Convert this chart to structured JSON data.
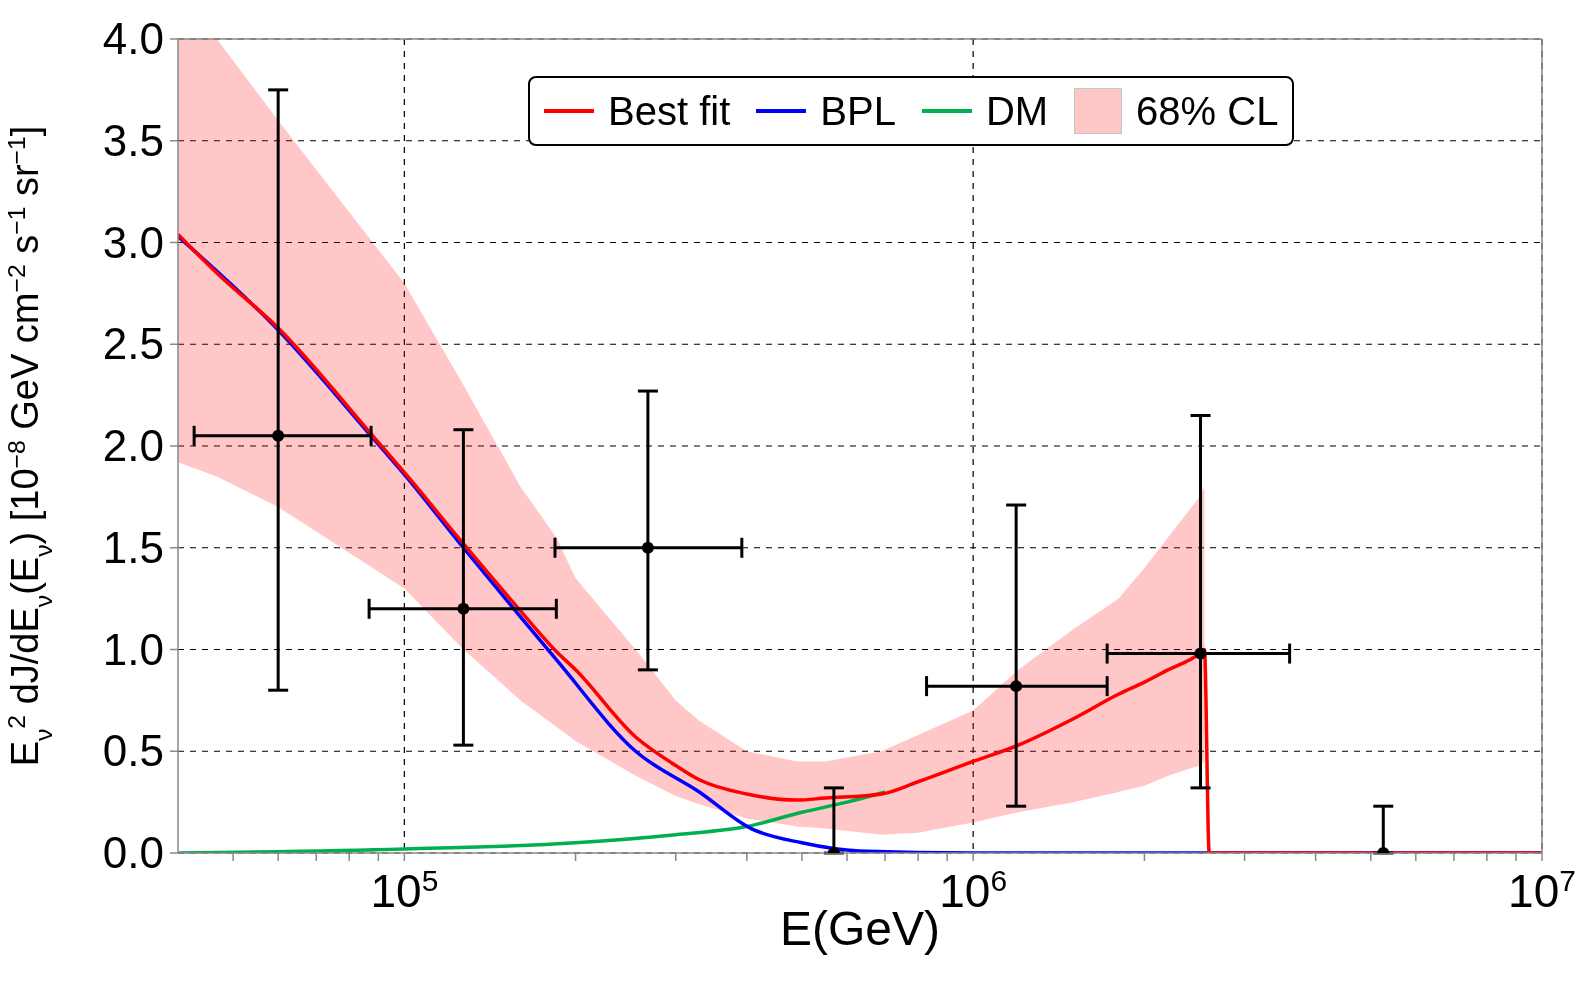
{
  "chart_data": {
    "type": "line",
    "xlabel": "E(GeV)",
    "ylabel": "E$_{ν}$$^{2}$ dJ/dE$_{ν}$(E$_{ν}$) [10$^{−8}$ GeV cm$^{−2}$ s$^{−1}$ sr$^{−1}$]",
    "annotations": [
      "68% CL"
    ],
    "log": "x",
    "grid": true,
    "legend": "top",
    "line_style": "solid",
    "xlim": [
      40000,
      10000000
    ],
    "xticks": [
      {
        "value": 50000,
        "label": null
      },
      {
        "value": 60000,
        "label": null
      },
      {
        "value": 70000,
        "label": null
      },
      {
        "value": 80000,
        "label": null
      },
      {
        "value": 90000,
        "label": null
      },
      {
        "value": 100000,
        "label": "10$^{5}$"
      },
      {
        "value": 200000,
        "label": null
      },
      {
        "value": 300000,
        "label": null
      },
      {
        "value": 400000,
        "label": null
      },
      {
        "value": 500000,
        "label": null
      },
      {
        "value": 600000,
        "label": null
      },
      {
        "value": 700000,
        "label": null
      },
      {
        "value": 800000,
        "label": null
      },
      {
        "value": 900000,
        "label": null
      },
      {
        "value": 1000000,
        "label": "10$^{6}$"
      },
      {
        "value": 2000000,
        "label": null
      },
      {
        "value": 3000000,
        "label": null
      },
      {
        "value": 4000000,
        "label": null
      },
      {
        "value": 5000000,
        "label": null
      },
      {
        "value": 6000000,
        "label": null
      },
      {
        "value": 7000000,
        "label": null
      },
      {
        "value": 8000000,
        "label": null
      },
      {
        "value": 9000000,
        "label": null
      },
      {
        "value": 10000000,
        "label": "10$^{7}$"
      }
    ],
    "ylim": [
      0,
      4
    ],
    "yticks": [
      {
        "value": 0,
        "label": "0.0"
      },
      {
        "value": 0.5,
        "label": "0.5"
      },
      {
        "value": 1,
        "label": "1.0"
      },
      {
        "value": 1.5,
        "label": "1.5"
      },
      {
        "value": 2,
        "label": "2.0"
      },
      {
        "value": 2.5,
        "label": "2.5"
      },
      {
        "value": 3,
        "label": "3.0"
      },
      {
        "value": 3.5,
        "label": "3.5"
      },
      {
        "value": 4,
        "label": "4.0"
      }
    ],
    "series": [
      {
        "name": "Best fit",
        "color": "#ff0000",
        "x": [
          40000,
          46800,
          60000,
          88000,
          100000,
          127000,
          160000,
          185000,
          200000,
          255000,
          300000,
          330000,
          400000,
          490000,
          550000,
          690000,
          800000,
          1000000,
          1200000,
          1500000,
          1800000,
          2000000,
          2200000,
          2500000,
          2550000,
          2600000,
          10000000
        ],
        "values": [
          3.04,
          2.85,
          2.58,
          2.05,
          1.87,
          1.52,
          1.19,
          0.99,
          0.9,
          0.57,
          0.43,
          0.36,
          0.29,
          0.26,
          0.27,
          0.29,
          0.35,
          0.45,
          0.53,
          0.66,
          0.78,
          0.84,
          0.9,
          0.98,
          1.0,
          0,
          0
        ],
        "lower": [
          1.92,
          1.85,
          1.7,
          1.4,
          1.3,
          1.0,
          0.75,
          0.62,
          0.55,
          0.38,
          0.28,
          0.24,
          0.17,
          0.13,
          0.12,
          0.09,
          0.1,
          0.15,
          0.2,
          0.25,
          0.3,
          0.33,
          0.38,
          0.43,
          0.45,
          null,
          null
        ],
        "upper": [
          4.0,
          4.0,
          3.6,
          3.0,
          2.8,
          2.3,
          1.8,
          1.55,
          1.35,
          1.0,
          0.75,
          0.65,
          0.5,
          0.45,
          0.45,
          0.5,
          0.58,
          0.7,
          0.9,
          1.1,
          1.25,
          1.4,
          1.55,
          1.75,
          1.8,
          null,
          null
        ]
      },
      {
        "name": "BPL",
        "color": "#0000ff",
        "x": [
          40000,
          60000,
          88000,
          100000,
          127000,
          160000,
          185000,
          255000,
          330000,
          407000,
          500000,
          630000,
          1000000,
          10000000
        ],
        "values": [
          3.03,
          2.57,
          2.04,
          1.86,
          1.5,
          1.16,
          0.95,
          0.5,
          0.3,
          0.12,
          0.05,
          0.01,
          0,
          0
        ]
      },
      {
        "name": "DM",
        "color": "#00b050",
        "x": [
          40000,
          100000,
          200000,
          300000,
          400000,
          500000,
          600000,
          700000
        ],
        "values": [
          0,
          0.02,
          0.05,
          0.09,
          0.13,
          0.2,
          0.25,
          0.3
        ]
      },
      {
        "type": "scatter",
        "color": "#000000",
        "marker": "circle",
        "x": [
          60000,
          127000,
          268000,
          569000,
          1190000,
          2510000,
          5260000
        ],
        "values": [
          2.05,
          1.2,
          1.5,
          0,
          0.82,
          0.98,
          0
        ],
        "errors": [
          [
            0.8,
            3.75
          ],
          [
            0.53,
            2.08
          ],
          [
            0.9,
            2.27
          ],
          [
            0,
            0.32
          ],
          [
            0.23,
            1.71
          ],
          [
            0.32,
            2.15
          ],
          [
            0,
            0.23
          ]
        ],
        "xerrors": [
          [
            42700,
            87400
          ],
          [
            86700,
            185000
          ],
          [
            184000,
            392000
          ],
          null,
          [
            828000,
            1720000
          ],
          [
            1720000,
            3600000
          ],
          null
        ]
      }
    ]
  }
}
